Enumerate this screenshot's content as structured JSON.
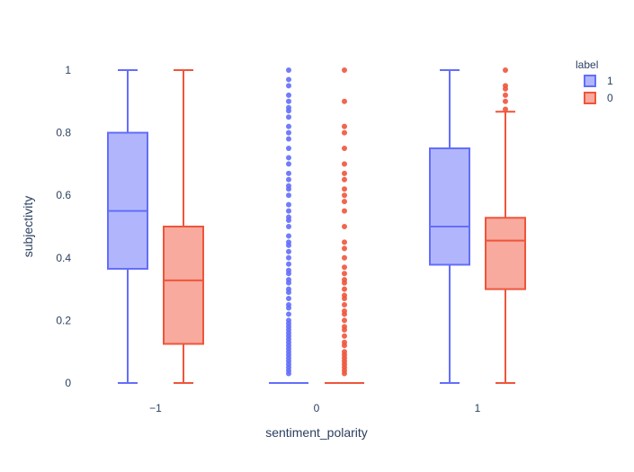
{
  "chart_data": {
    "type": "box",
    "xlabel": "sentiment_polarity",
    "ylabel": "subjectivity",
    "categories": [
      "−1",
      "0",
      "1"
    ],
    "yticks": [
      "0",
      "0.2",
      "0.4",
      "0.6",
      "0.8",
      "1"
    ],
    "ylim": [
      0,
      1
    ],
    "grid": false,
    "legend": {
      "title": "label",
      "placement": "top-right"
    },
    "series": [
      {
        "name": "1",
        "color": "#636efa",
        "boxes": [
          {
            "category": "−1",
            "min": 0,
            "q1": 0.365,
            "median": 0.55,
            "q3": 0.8,
            "max": 1,
            "outliers": []
          },
          {
            "category": "0",
            "min": 0,
            "q1": 0,
            "median": 0,
            "q3": 0,
            "max": 0,
            "outliers": [
              0.03,
              0.04,
              0.05,
              0.06,
              0.07,
              0.08,
              0.09,
              0.1,
              0.11,
              0.12,
              0.13,
              0.14,
              0.15,
              0.16,
              0.17,
              0.18,
              0.19,
              0.2,
              0.22,
              0.24,
              0.25,
              0.27,
              0.29,
              0.3,
              0.32,
              0.33,
              0.35,
              0.36,
              0.38,
              0.4,
              0.42,
              0.44,
              0.45,
              0.47,
              0.5,
              0.52,
              0.53,
              0.55,
              0.57,
              0.6,
              0.62,
              0.63,
              0.65,
              0.67,
              0.7,
              0.72,
              0.75,
              0.78,
              0.8,
              0.82,
              0.85,
              0.87,
              0.88,
              0.9,
              0.92,
              0.95,
              0.97,
              1.0
            ]
          },
          {
            "category": "1",
            "min": 0,
            "q1": 0.378,
            "median": 0.5,
            "q3": 0.75,
            "max": 1,
            "outliers": []
          }
        ]
      },
      {
        "name": "0",
        "color": "#ef553b",
        "boxes": [
          {
            "category": "−1",
            "min": 0,
            "q1": 0.125,
            "median": 0.328,
            "q3": 0.5,
            "max": 1,
            "outliers": []
          },
          {
            "category": "0",
            "min": 0,
            "q1": 0,
            "median": 0,
            "q3": 0,
            "max": 0,
            "outliers": [
              0.03,
              0.04,
              0.05,
              0.06,
              0.07,
              0.08,
              0.09,
              0.1,
              0.12,
              0.13,
              0.15,
              0.17,
              0.18,
              0.2,
              0.22,
              0.23,
              0.25,
              0.27,
              0.28,
              0.3,
              0.32,
              0.33,
              0.35,
              0.37,
              0.4,
              0.43,
              0.45,
              0.5,
              0.55,
              0.58,
              0.6,
              0.62,
              0.65,
              0.67,
              0.7,
              0.75,
              0.8,
              0.82,
              0.9,
              1.0
            ]
          },
          {
            "category": "1",
            "min": 0,
            "q1": 0.3,
            "median": 0.455,
            "q3": 0.528,
            "max": 0.867,
            "outliers": [
              0.875,
              0.9,
              0.92,
              0.94,
              0.95,
              1.0
            ]
          }
        ]
      }
    ]
  }
}
